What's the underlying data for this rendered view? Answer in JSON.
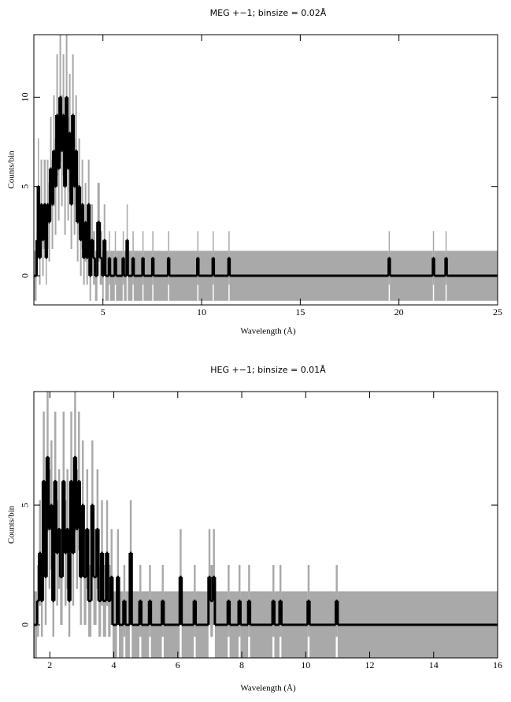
{
  "chart_data": [
    {
      "type": "step",
      "title": "MEG +−1; binsize = 0.02Å",
      "x_label": "Wavelength (Å)",
      "y_label": "Counts/bin",
      "line_color": "#000000",
      "error_color": "#a9a9a9",
      "xlim": [
        1.5,
        25
      ],
      "ylim": [
        -1.63,
        13.5
      ],
      "xticks": [
        5,
        10,
        15,
        20,
        25
      ],
      "yticks": [
        0,
        5,
        10
      ],
      "x": [
        1.5,
        1.64,
        1.7,
        1.76,
        1.84,
        1.92,
        2.0,
        2.1,
        2.16,
        2.24,
        2.32,
        2.4,
        2.48,
        2.56,
        2.64,
        2.72,
        2.8,
        2.88,
        2.96,
        3.04,
        3.12,
        3.2,
        3.28,
        3.36,
        3.44,
        3.52,
        3.6,
        3.68,
        3.76,
        3.84,
        3.92,
        4.0,
        4.08,
        4.16,
        4.24,
        4.32,
        4.4,
        4.5,
        4.6,
        4.72,
        4.84,
        4.96,
        5.04,
        5.12,
        5.3,
        5.36,
        5.6,
        5.66,
        6.0,
        6.06,
        6.2,
        6.26,
        6.5,
        6.56,
        7.0,
        7.06,
        7.5,
        7.56,
        8.3,
        8.36,
        9.78,
        9.84,
        10.56,
        10.62,
        11.36,
        11.42,
        19.48,
        19.54,
        21.72,
        21.78,
        22.36,
        22.42
      ],
      "values": [
        0,
        2,
        5,
        1,
        4,
        2,
        4,
        1,
        4,
        3,
        6,
        4,
        7,
        5,
        9,
        6,
        10,
        7,
        9,
        5,
        10,
        6,
        8,
        4,
        9,
        5,
        7,
        3,
        5,
        2,
        4,
        1,
        3,
        1,
        4,
        0,
        2,
        1,
        0,
        3,
        1,
        0,
        2,
        0,
        1,
        0,
        1,
        0,
        1,
        0,
        2,
        0,
        1,
        0,
        1,
        0,
        1,
        0,
        1,
        0,
        1,
        0,
        1,
        0,
        1,
        0,
        1,
        0,
        1,
        0,
        1,
        0
      ],
      "errors": [
        1.4,
        2.0,
        2.7,
        1.5,
        2.5,
        2.0,
        2.5,
        1.5,
        2.5,
        2.2,
        2.9,
        2.5,
        3.1,
        2.7,
        3.4,
        2.9,
        3.6,
        3.1,
        3.4,
        2.7,
        3.6,
        2.9,
        3.3,
        2.5,
        3.4,
        2.7,
        3.1,
        2.2,
        2.7,
        2.0,
        2.5,
        1.5,
        2.2,
        1.5,
        2.5,
        1.4,
        2.0,
        1.5,
        1.4,
        2.2,
        1.5,
        1.4,
        2.0,
        1.4,
        1.5,
        1.4,
        1.5,
        1.4,
        1.5,
        1.4,
        2.0,
        1.4,
        1.5,
        1.4,
        1.5,
        1.4,
        1.5,
        1.4,
        1.5,
        1.4,
        1.5,
        1.4,
        1.5,
        1.4,
        1.5,
        1.4,
        1.5,
        1.4,
        1.5,
        1.4,
        1.5,
        1.4
      ]
    },
    {
      "type": "step",
      "title": "HEG +−1; binsize = 0.01Å",
      "x_label": "Wavelength (Å)",
      "y_label": "Counts/bin",
      "line_color": "#000000",
      "error_color": "#a9a9a9",
      "xlim": [
        1.5,
        16
      ],
      "ylim": [
        -1.38,
        9.74
      ],
      "xticks": [
        2,
        4,
        6,
        8,
        10,
        12,
        14,
        16
      ],
      "yticks": [
        0,
        5
      ],
      "x": [
        1.5,
        1.6,
        1.66,
        1.72,
        1.78,
        1.84,
        1.9,
        1.96,
        2.02,
        2.08,
        2.14,
        2.2,
        2.26,
        2.32,
        2.4,
        2.46,
        2.52,
        2.58,
        2.64,
        2.7,
        2.76,
        2.82,
        2.88,
        2.94,
        3.0,
        3.06,
        3.14,
        3.2,
        3.3,
        3.36,
        3.46,
        3.52,
        3.6,
        3.66,
        3.76,
        3.82,
        3.9,
        3.96,
        4.1,
        4.16,
        4.3,
        4.36,
        4.5,
        4.56,
        4.8,
        4.86,
        5.1,
        5.16,
        5.5,
        5.56,
        6.06,
        6.12,
        6.5,
        6.56,
        6.96,
        7.02,
        7.1,
        7.16,
        7.56,
        7.62,
        7.9,
        7.96,
        8.2,
        8.26,
        8.96,
        9.02,
        9.18,
        9.24,
        10.06,
        10.12,
        10.94,
        11.0
      ],
      "values": [
        0,
        1,
        3,
        1,
        6,
        2,
        7,
        4,
        5,
        1,
        6,
        3,
        4,
        2,
        6,
        3,
        4,
        1,
        6,
        3,
        7,
        4,
        6,
        2,
        5,
        2,
        4,
        1,
        5,
        2,
        4,
        1,
        3,
        1,
        3,
        1,
        2,
        0,
        2,
        0,
        1,
        0,
        3,
        0,
        1,
        0,
        1,
        0,
        1,
        0,
        2,
        0,
        1,
        0,
        2,
        1,
        2,
        0,
        1,
        0,
        1,
        0,
        1,
        0,
        1,
        0,
        1,
        0,
        1,
        0,
        1,
        0
      ],
      "errors": [
        1.4,
        1.5,
        2.2,
        1.5,
        2.9,
        2.0,
        3.1,
        2.5,
        2.7,
        1.5,
        2.9,
        2.2,
        2.5,
        2.0,
        2.9,
        2.2,
        2.5,
        1.5,
        2.9,
        2.2,
        3.1,
        2.5,
        2.9,
        2.0,
        2.7,
        2.0,
        2.5,
        1.5,
        2.7,
        2.0,
        2.5,
        1.5,
        2.2,
        1.5,
        2.2,
        1.5,
        2.0,
        1.4,
        2.0,
        1.4,
        1.5,
        1.4,
        2.2,
        1.4,
        1.5,
        1.4,
        1.5,
        1.4,
        1.5,
        1.4,
        2.0,
        1.4,
        1.5,
        1.4,
        2.0,
        1.5,
        2.0,
        1.4,
        1.5,
        1.4,
        1.5,
        1.4,
        1.5,
        1.4,
        1.5,
        1.4,
        1.5,
        1.4,
        1.5,
        1.4,
        1.5,
        1.4
      ]
    }
  ]
}
